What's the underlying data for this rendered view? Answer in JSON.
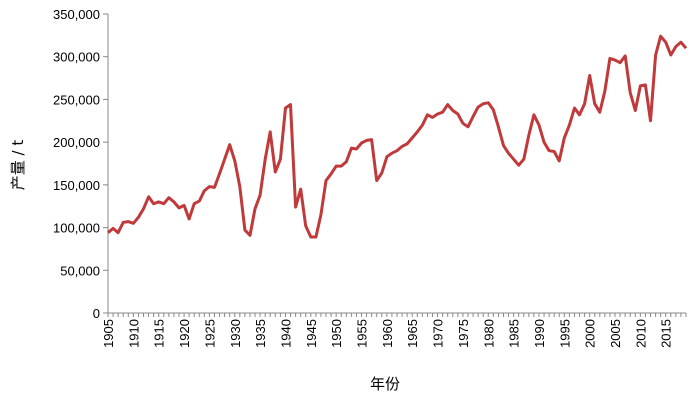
{
  "chart_data": {
    "type": "line",
    "title": "",
    "xlabel": "年份",
    "ylabel": "产量 / t",
    "xlim": [
      1905,
      2019
    ],
    "ylim": [
      0,
      350000
    ],
    "grid": false,
    "line_color": "#c0393b",
    "y_ticks": [
      "0",
      "50,000",
      "100,000",
      "150,000",
      "200,000",
      "250,000",
      "300,000",
      "350,000"
    ],
    "x_ticks": [
      "1905",
      "1910",
      "1915",
      "1920",
      "1925",
      "1930",
      "1935",
      "1940",
      "1945",
      "1950",
      "1955",
      "1960",
      "1965",
      "1970",
      "1975",
      "1980",
      "1985",
      "1990",
      "1995",
      "2000",
      "2005",
      "2010",
      "2015"
    ],
    "series": [
      {
        "x_start": 1905,
        "values": [
          94000,
          99000,
          94000,
          106000,
          107000,
          105000,
          112000,
          122000,
          136000,
          128000,
          130000,
          128000,
          135000,
          130000,
          123000,
          126000,
          110000,
          128000,
          131000,
          143000,
          148000,
          147000,
          163000,
          180000,
          197000,
          178000,
          148000,
          97000,
          91000,
          122000,
          138000,
          180000,
          212000,
          165000,
          180000,
          240000,
          244000,
          124000,
          145000,
          102000,
          89000,
          89000,
          115000,
          155000,
          163000,
          172000,
          172000,
          177000,
          193000,
          192000,
          199000,
          202000,
          203000,
          155000,
          164000,
          183000,
          187000,
          190000,
          195000,
          198000,
          205000,
          212000,
          220000,
          232000,
          229000,
          233000,
          235000,
          244000,
          237000,
          233000,
          222000,
          218000,
          230000,
          241000,
          245000,
          246000,
          238000,
          218000,
          196000,
          187000,
          180000,
          173000,
          180000,
          208000,
          232000,
          220000,
          200000,
          190000,
          189000,
          178000,
          205000,
          220000,
          240000,
          232000,
          245000,
          278000,
          245000,
          235000,
          260000,
          298000,
          296000,
          293000,
          301000,
          258000,
          237000,
          266000,
          267000,
          225000,
          302000,
          324000,
          317000,
          302000,
          312000,
          317000,
          310000
        ]
      }
    ]
  }
}
